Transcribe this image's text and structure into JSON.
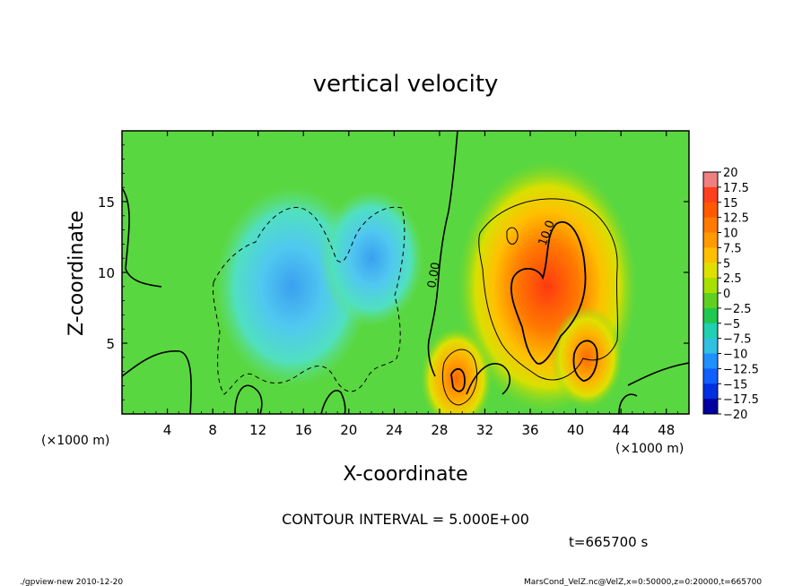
{
  "chart_data": {
    "type": "heatmap",
    "title": "vertical velocity",
    "xlabel": "X-coordinate",
    "ylabel": "Z-coordinate",
    "x_unit_left": "(×1000 m)",
    "x_unit_right": "(×1000 m)",
    "xlim": [
      0,
      50
    ],
    "ylim": [
      0,
      20
    ],
    "x_ticks": [
      4,
      8,
      12,
      16,
      20,
      24,
      28,
      32,
      36,
      40,
      44,
      48
    ],
    "y_ticks": [
      5,
      10,
      15
    ],
    "colorbar_labels": [
      "20",
      "17.5",
      "15",
      "12.5",
      "10",
      "7.5",
      "5",
      "2.5",
      "0",
      "−2.5",
      "−5",
      "−7.5",
      "−10",
      "−12.5",
      "−15",
      "−17.5",
      "−20"
    ],
    "colorbar_colors": [
      "#f08080",
      "#ff4020",
      "#ff5a00",
      "#ff7a00",
      "#ff9a00",
      "#ffc000",
      "#e0e000",
      "#a8e000",
      "#60d020",
      "#20c850",
      "#20d0b0",
      "#30c0e0",
      "#2090ff",
      "#1060ff",
      "#0030e0",
      "#0000a0",
      "#6020a0"
    ],
    "contour_labels": [
      "10.0",
      "0.00"
    ],
    "contour_interval_text": "CONTOUR INTERVAL = 5.000E+00",
    "time_text": "t=665700 s",
    "features": [
      {
        "x": 15,
        "z": 9,
        "value": -8
      },
      {
        "x": 22,
        "z": 11,
        "value": -4
      },
      {
        "x": 37.5,
        "z": 9,
        "value": 13
      },
      {
        "x": 41,
        "z": 4,
        "value": 12
      },
      {
        "x": 29.5,
        "z": 2.5,
        "value": 12
      }
    ]
  },
  "footer": {
    "left": "./gpview-new   2010-12-20",
    "right": "MarsCond_VelZ.nc@VelZ,x=0:50000,z=0:20000,t=665700"
  }
}
